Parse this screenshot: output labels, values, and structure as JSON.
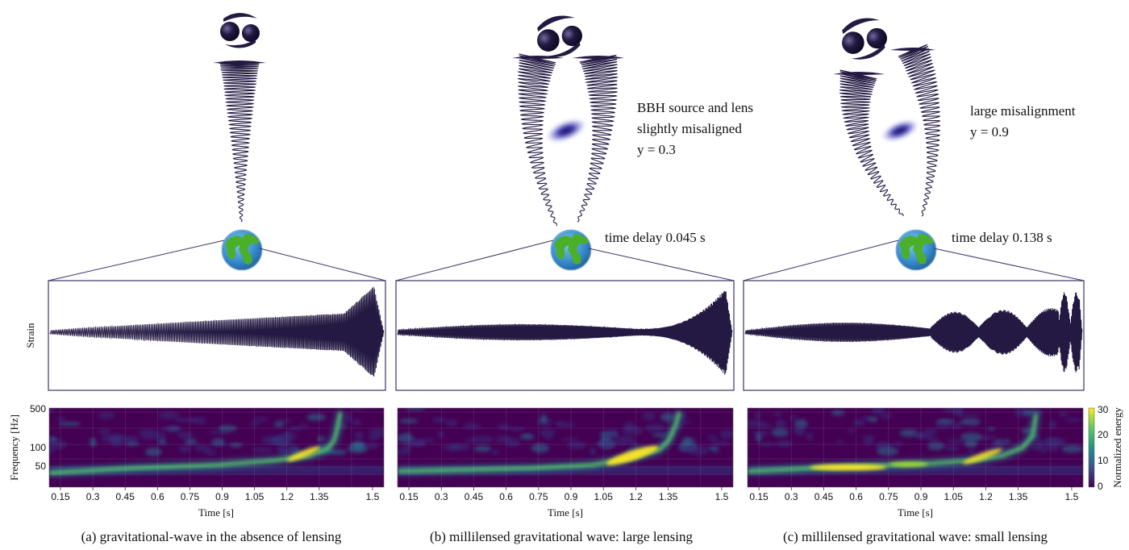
{
  "axes": {
    "strain_ylabel": "Strain",
    "freq_ylabel": "Frequency [Hz]",
    "time_xlabel": "Time [s]",
    "time_ticks": [
      "0.15",
      "0.3",
      "0.45",
      "0.6",
      "0.75",
      "0.9",
      "1.05",
      "1.2",
      "1.35",
      "1.5"
    ],
    "freq_ticks": [
      "500",
      "100",
      "50"
    ],
    "colorbar_label": "Normalized energy",
    "colorbar_ticks": [
      "30",
      "20",
      "10",
      "0"
    ]
  },
  "panels": [
    {
      "id": "a",
      "caption": "(a) gravitational-wave in the absence of lensing",
      "annotation_lines": [],
      "time_delay": ""
    },
    {
      "id": "b",
      "caption": "(b) millilensed gravitational wave: large lensing",
      "annotation_lines": [
        "BBH source and lens",
        "slightly misaligned",
        "y = 0.3"
      ],
      "time_delay": "time delay 0.045 s"
    },
    {
      "id": "c",
      "caption": "(c) millilensed gravitational wave: small lensing",
      "annotation_lines": [
        "large misalignment",
        "y = 0.9"
      ],
      "time_delay": "time delay 0.138 s"
    }
  ],
  "colors": {
    "waveform": "#231942",
    "frame": "#3b3466",
    "spectrogram_bg": "#440154",
    "spectrogram_peak": "#fde725",
    "earth_ocean": "#3a8fd1",
    "earth_land": "#4caf2a"
  }
}
